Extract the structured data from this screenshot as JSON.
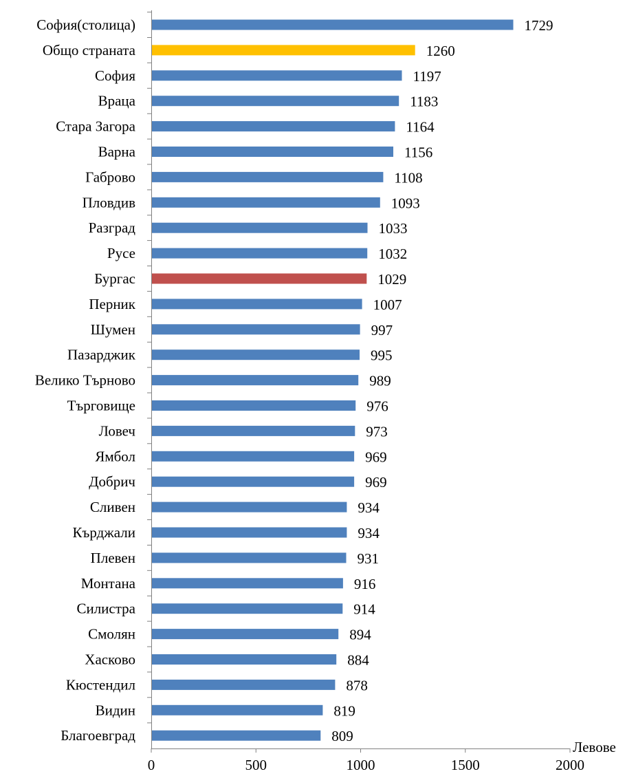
{
  "chart_data": {
    "type": "bar",
    "orientation": "horizontal",
    "title": "",
    "xlabel": "Левове",
    "ylabel": "",
    "xlim": [
      0,
      2000
    ],
    "xticks": [
      0,
      500,
      1000,
      1500,
      2000
    ],
    "grid": false,
    "legend": "none",
    "categories": [
      "София(столица)",
      "Общо страната",
      "София",
      "Враца",
      "Стара Загора",
      "Варна",
      "Габрово",
      "Пловдив",
      "Разград",
      "Русе",
      "Бургас",
      "Перник",
      "Шумен",
      "Пазарджик",
      "Велико Търново",
      "Търговище",
      "Ловеч",
      "Ямбол",
      "Добрич",
      "Сливен",
      "Кърджали",
      "Плевен",
      "Монтана",
      "Силистра",
      "Смолян",
      "Хасково",
      "Кюстендил",
      "Видин ",
      "Благоевград"
    ],
    "values": [
      1729,
      1260,
      1197,
      1183,
      1164,
      1156,
      1108,
      1093,
      1033,
      1032,
      1029,
      1007,
      997,
      995,
      989,
      976,
      973,
      969,
      969,
      934,
      934,
      931,
      916,
      914,
      894,
      884,
      878,
      819,
      809
    ],
    "colors": {
      "default": "#4f81bd",
      "highlight": {
        "Общо страната": "#ffc000",
        "Бургас": "#c0504d"
      }
    }
  }
}
